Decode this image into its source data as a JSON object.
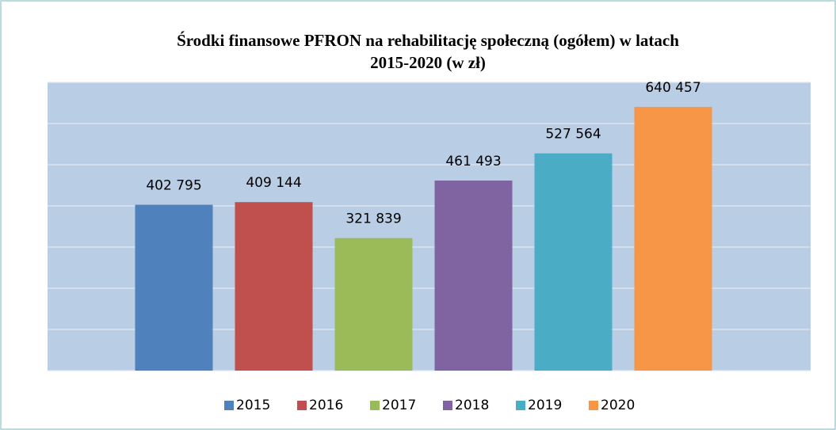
{
  "chart_data": {
    "type": "bar",
    "title": [
      "Środki finansowe PFRON na rehabilitację społeczną (ogółem) w latach",
      "2015-2020 (w zł)"
    ],
    "categories": [
      null
    ],
    "series": [
      {
        "name": "2015",
        "color": "#4f81bd",
        "values": [
          402795
        ],
        "value_labels": [
          "402 795"
        ]
      },
      {
        "name": "2016",
        "color": "#c0504d",
        "values": [
          409144
        ],
        "value_labels": [
          "409 144"
        ]
      },
      {
        "name": "2017",
        "color": "#9bbb59",
        "values": [
          321839
        ],
        "value_labels": [
          "321 839"
        ]
      },
      {
        "name": "2018",
        "color": "#8064a2",
        "values": [
          461493
        ],
        "value_labels": [
          "461 493"
        ]
      },
      {
        "name": "2019",
        "color": "#4bacc6",
        "values": [
          527564
        ],
        "value_labels": [
          "527 564"
        ]
      },
      {
        "name": "2020",
        "color": "#f79646",
        "values": [
          640457
        ],
        "value_labels": [
          "640 457"
        ]
      }
    ],
    "ylim": [
      0,
      700000
    ],
    "yticks": [
      0,
      100000,
      200000,
      300000,
      400000,
      500000,
      600000,
      700000
    ],
    "grid": true,
    "legend": "bottom"
  }
}
